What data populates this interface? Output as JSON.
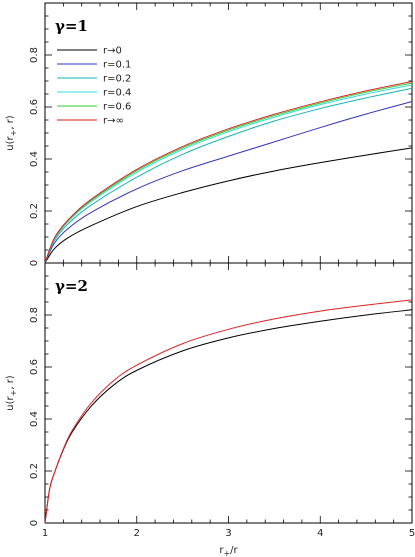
{
  "chart_data": [
    {
      "type": "line",
      "title": "γ=1",
      "xlabel": "r+/r",
      "ylabel": "u(r+, r)",
      "xlim": [
        1,
        5
      ],
      "ylim": [
        0,
        1.0
      ],
      "xticks": [
        1,
        2,
        3,
        4,
        5
      ],
      "yticks": [
        0,
        0.2,
        0.4,
        0.6,
        0.8
      ],
      "x_tick_labels_shown": false,
      "legend_position": "top-left",
      "series": [
        {
          "name": "r→0",
          "color": "#000000",
          "x": [
            1,
            1.1,
            1.25,
            1.5,
            2,
            2.5,
            3,
            3.5,
            4,
            4.5,
            5
          ],
          "y": [
            0,
            0.054,
            0.097,
            0.143,
            0.217,
            0.271,
            0.316,
            0.354,
            0.386,
            0.415,
            0.443
          ]
        },
        {
          "name": "r=0.1",
          "color": "#3333bb",
          "x": [
            1,
            1.1,
            1.25,
            1.5,
            2,
            2.5,
            3,
            3.5,
            4,
            4.5,
            5
          ],
          "y": [
            0,
            0.075,
            0.132,
            0.194,
            0.285,
            0.355,
            0.411,
            0.466,
            0.521,
            0.573,
            0.621
          ]
        },
        {
          "name": "r=0.2",
          "color": "#1ab3b3",
          "x": [
            1,
            1.1,
            1.25,
            1.5,
            2,
            2.5,
            3,
            3.5,
            4,
            4.5,
            5
          ],
          "y": [
            0,
            0.085,
            0.15,
            0.222,
            0.33,
            0.418,
            0.487,
            0.546,
            0.594,
            0.635,
            0.672
          ]
        },
        {
          "name": "r=0.4",
          "color": "#33dddd",
          "x": [
            1,
            1.1,
            1.25,
            1.5,
            2,
            2.5,
            3,
            3.5,
            4,
            4.5,
            5
          ],
          "y": [
            0,
            0.09,
            0.159,
            0.235,
            0.349,
            0.437,
            0.505,
            0.561,
            0.609,
            0.65,
            0.685
          ]
        },
        {
          "name": "r=0.6",
          "color": "#33cc33",
          "x": [
            1,
            1.1,
            1.25,
            1.5,
            2,
            2.5,
            3,
            3.5,
            4,
            4.5,
            5
          ],
          "y": [
            0,
            0.093,
            0.162,
            0.24,
            0.355,
            0.443,
            0.511,
            0.567,
            0.615,
            0.657,
            0.692
          ]
        },
        {
          "name": "r→∞",
          "color": "#dd2222",
          "x": [
            1,
            1.1,
            1.25,
            1.5,
            2,
            2.5,
            3,
            3.5,
            4,
            4.5,
            5
          ],
          "y": [
            0,
            0.095,
            0.165,
            0.244,
            0.36,
            0.448,
            0.516,
            0.572,
            0.62,
            0.662,
            0.698
          ]
        }
      ]
    },
    {
      "type": "line",
      "title": "γ=2",
      "xlabel": "r+/r",
      "ylabel": "u(r+, r)",
      "xlim": [
        1,
        5
      ],
      "ylim": [
        0,
        1.0
      ],
      "xticks": [
        1,
        2,
        3,
        4,
        5
      ],
      "yticks": [
        0,
        0.2,
        0.4,
        0.6,
        0.8
      ],
      "x_tick_labels_shown": true,
      "series": [
        {
          "name": "r→0",
          "color": "#000000",
          "x": [
            1,
            1.05,
            1.1,
            1.2,
            1.3,
            1.5,
            1.75,
            2,
            2.5,
            3,
            3.5,
            4,
            4.5,
            5
          ],
          "y": [
            0,
            0.13,
            0.19,
            0.282,
            0.352,
            0.448,
            0.531,
            0.587,
            0.662,
            0.712,
            0.748,
            0.776,
            0.8,
            0.82
          ]
        },
        {
          "name": "r→∞",
          "color": "#dd2222",
          "x": [
            1,
            1.05,
            1.1,
            1.2,
            1.3,
            1.5,
            1.75,
            2,
            2.5,
            3,
            3.5,
            4,
            4.5,
            5
          ],
          "y": [
            0,
            0.13,
            0.19,
            0.285,
            0.358,
            0.46,
            0.548,
            0.607,
            0.69,
            0.745,
            0.785,
            0.815,
            0.838,
            0.858
          ]
        }
      ]
    }
  ]
}
